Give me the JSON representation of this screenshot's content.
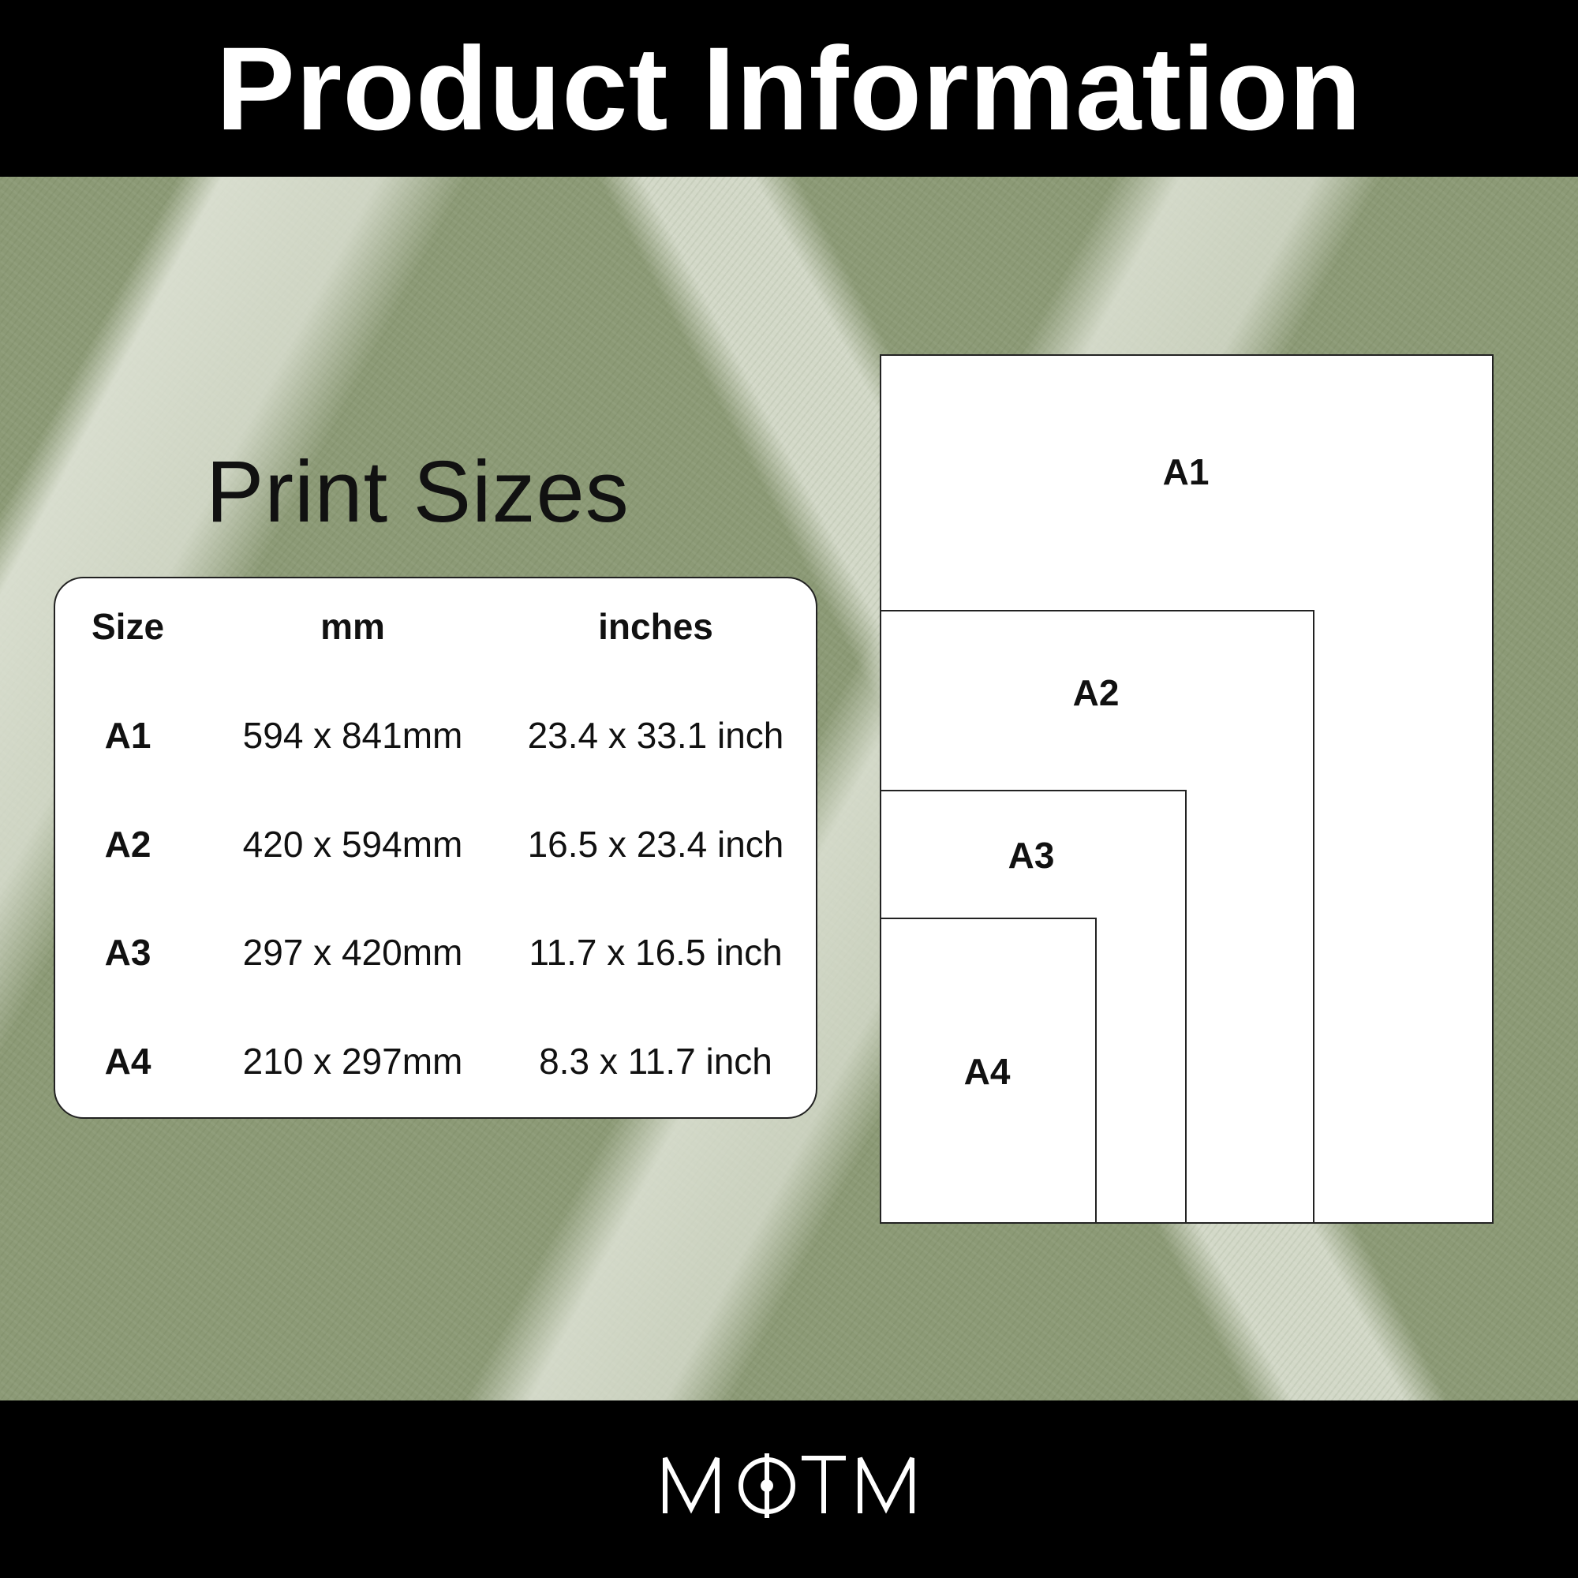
{
  "header": {
    "title": "Product Information"
  },
  "section": {
    "title": "Print Sizes"
  },
  "table": {
    "headers": [
      "Size",
      "mm",
      "inches"
    ],
    "rows": [
      [
        "A1",
        "594 x 841mm",
        "23.4 x 33.1 inch"
      ],
      [
        "A2",
        "420 x 594mm",
        "16.5 x 23.4 inch"
      ],
      [
        "A3",
        "297 x 420mm",
        "11.7 x 16.5 inch"
      ],
      [
        "A4",
        "210 x 297mm",
        "8.3 x 11.7 inch"
      ]
    ]
  },
  "diagram": {
    "labels": [
      "A1",
      "A2",
      "A3",
      "A4"
    ]
  },
  "footer": {
    "logo_text": "MOTM"
  },
  "colors": {
    "bars": "#000000",
    "panel": "#ffffff",
    "grass": "#8c9a76"
  }
}
